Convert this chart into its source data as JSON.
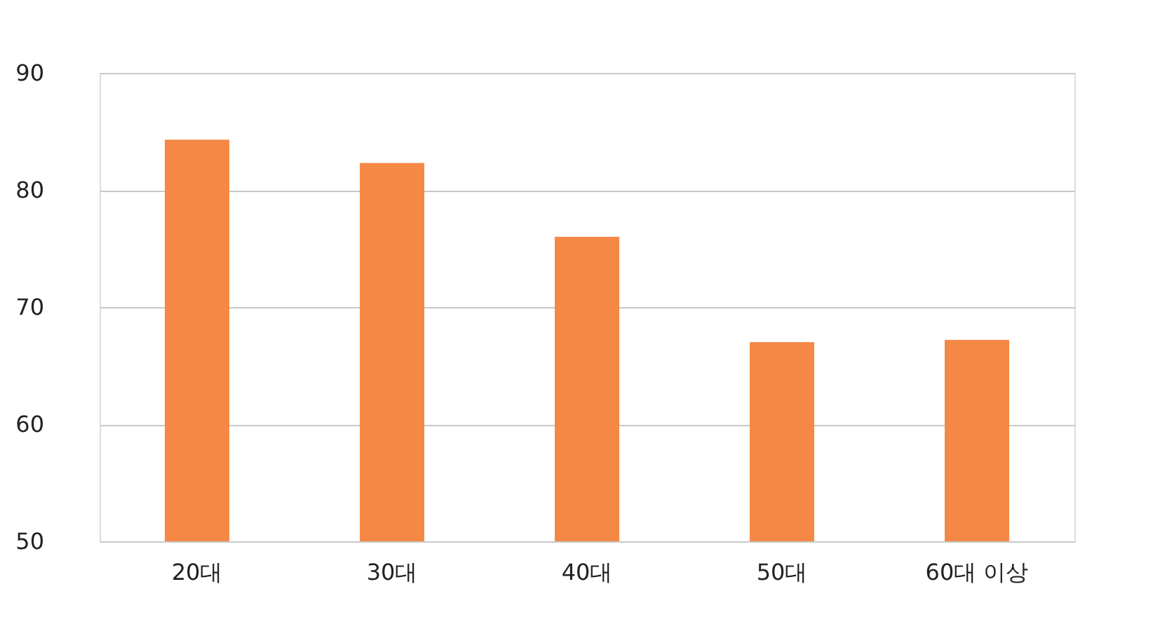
{
  "chart_data": {
    "type": "bar",
    "categories": [
      "20대",
      "30대",
      "40대",
      "50대",
      "60대 이상"
    ],
    "values": [
      84.3,
      82.3,
      76.0,
      67.0,
      67.2
    ],
    "color": "#f58845",
    "ylim": [
      50,
      90
    ],
    "yticks": [
      50,
      60,
      70,
      80,
      90
    ],
    "grid": "y"
  }
}
